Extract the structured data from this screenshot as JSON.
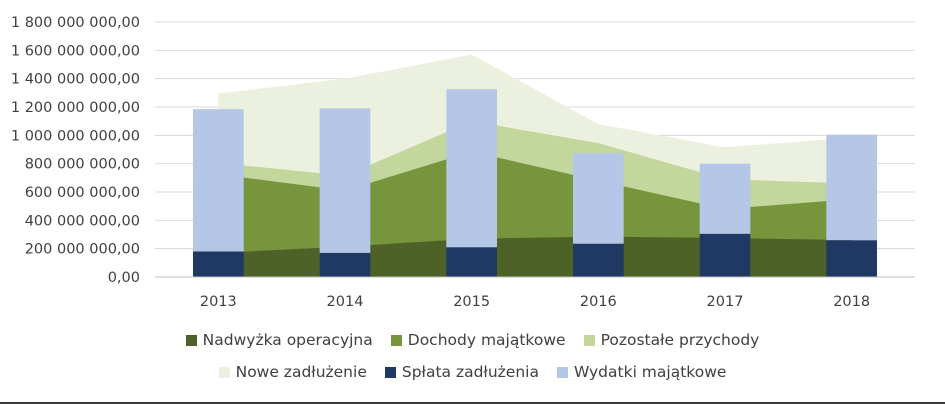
{
  "chart_data": {
    "type": "area",
    "categories": [
      "2013",
      "2014",
      "2015",
      "2016",
      "2017",
      "2018"
    ],
    "ylim": [
      0,
      1800000000
    ],
    "yticks": [
      0,
      200000000,
      400000000,
      600000000,
      800000000,
      1000000000,
      1200000000,
      1400000000,
      1600000000,
      1800000000
    ],
    "ytick_labels": [
      "0,00",
      "200 000 000,00",
      "400 000 000,00",
      "600 000 000,00",
      "800 000 000,00",
      "1 000 000 000,00",
      "1 200 000 000,00",
      "1 400 000 000,00",
      "1 600 000 000,00",
      "1 800 000 000,00"
    ],
    "grid": true,
    "legend_position": "bottom",
    "stacked_area_series": [
      {
        "name": "Nadwyżka operacyjna",
        "color": "#4e6228",
        "values": [
          170000000,
          215000000,
          270000000,
          285000000,
          275000000,
          260000000
        ]
      },
      {
        "name": "Dochody majątkowe",
        "color": "#77953d",
        "values": [
          555000000,
          395000000,
          615000000,
          395000000,
          205000000,
          290000000
        ]
      },
      {
        "name": "Pozostałe przychody",
        "color": "#c3d69b",
        "values": [
          80000000,
          105000000,
          215000000,
          265000000,
          210000000,
          110000000
        ]
      },
      {
        "name": "Nowe zadłużenie",
        "color": "#ebf1de",
        "values": [
          490000000,
          685000000,
          470000000,
          135000000,
          225000000,
          325000000
        ]
      }
    ],
    "stacked_bar_series": [
      {
        "name": "Spłata zadłużenia",
        "color": "#203864",
        "values": [
          180000000,
          170000000,
          210000000,
          235000000,
          305000000,
          260000000
        ]
      },
      {
        "name": "Wydatki majątkowe",
        "color": "#b4c7e7",
        "values": [
          1005000000,
          1020000000,
          1115000000,
          640000000,
          495000000,
          745000000
        ]
      }
    ]
  },
  "legend": {
    "row1": [
      {
        "label": "Nadwyżka operacyjna",
        "color": "#4e6228"
      },
      {
        "label": "Dochody majątkowe",
        "color": "#77953d"
      },
      {
        "label": "Pozostałe przychody",
        "color": "#c3d69b"
      }
    ],
    "row2": [
      {
        "label": "Nowe zadłużenie",
        "color": "#ebf1de"
      },
      {
        "label": "Spłata zadłużenia",
        "color": "#203864"
      },
      {
        "label": "Wydatki majątkowe",
        "color": "#b4c7e7"
      }
    ]
  }
}
